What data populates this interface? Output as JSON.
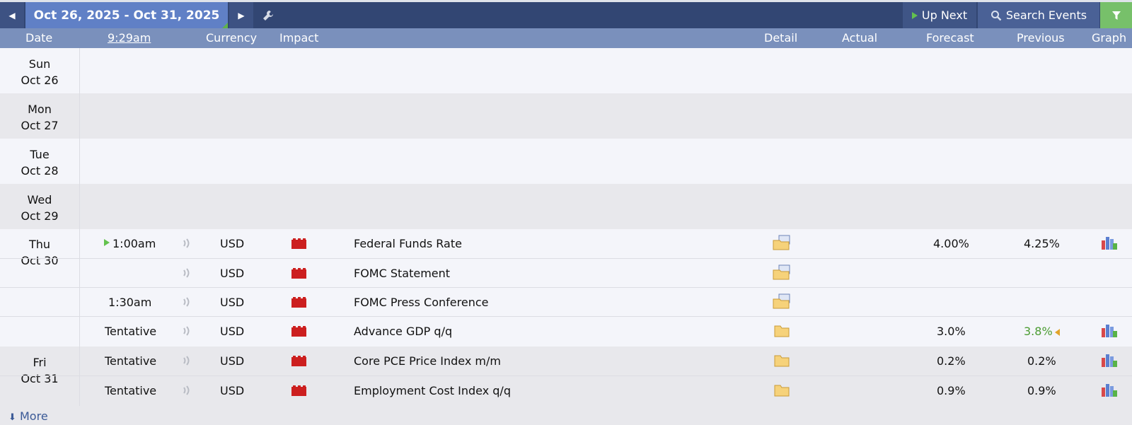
{
  "toolbar": {
    "date_range": "Oct 26, 2025 - Oct 31, 2025",
    "prev_icon": "caret-left-icon",
    "next_icon": "caret-right-icon",
    "settings_icon": "wrench-icon",
    "up_next_label": "Up Next",
    "search_label": "Search Events",
    "filter_icon": "filter-icon"
  },
  "columns": {
    "date": "Date",
    "time": "9:29am",
    "currency": "Currency",
    "impact": "Impact",
    "detail": "Detail",
    "actual": "Actual",
    "forecast": "Forecast",
    "previous": "Previous",
    "graph": "Graph"
  },
  "days": [
    {
      "dow": "Sun",
      "date": "Oct 26"
    },
    {
      "dow": "Mon",
      "date": "Oct 27"
    },
    {
      "dow": "Tue",
      "date": "Oct 28"
    },
    {
      "dow": "Wed",
      "date": "Oct 29"
    },
    {
      "dow": "Thu",
      "date": "Oct 30"
    },
    {
      "dow": "Fri",
      "date": "Oct 31"
    }
  ],
  "events": [
    {
      "time": "1:00am",
      "currency": "USD",
      "name": "Federal Funds Rate",
      "actual": "",
      "forecast": "4.00%",
      "previous": "4.25%"
    },
    {
      "time": "",
      "currency": "USD",
      "name": "FOMC Statement",
      "actual": "",
      "forecast": "",
      "previous": ""
    },
    {
      "time": "1:30am",
      "currency": "USD",
      "name": "FOMC Press Conference",
      "actual": "",
      "forecast": "",
      "previous": ""
    },
    {
      "time": "Tentative",
      "currency": "USD",
      "name": "Advance GDP q/q",
      "actual": "",
      "forecast": "3.0%",
      "previous": "3.8%"
    },
    {
      "time": "Tentative",
      "currency": "USD",
      "name": "Core PCE Price Index m/m",
      "actual": "",
      "forecast": "0.2%",
      "previous": "0.2%"
    },
    {
      "time": "Tentative",
      "currency": "USD",
      "name": "Employment Cost Index q/q",
      "actual": "",
      "forecast": "0.9%",
      "previous": "0.9%"
    }
  ],
  "footer": {
    "more_label": "More"
  },
  "colors": {
    "impact_high": "#cc1f1f",
    "revised_up": "#4b9c32",
    "accent": "#6080c6"
  }
}
